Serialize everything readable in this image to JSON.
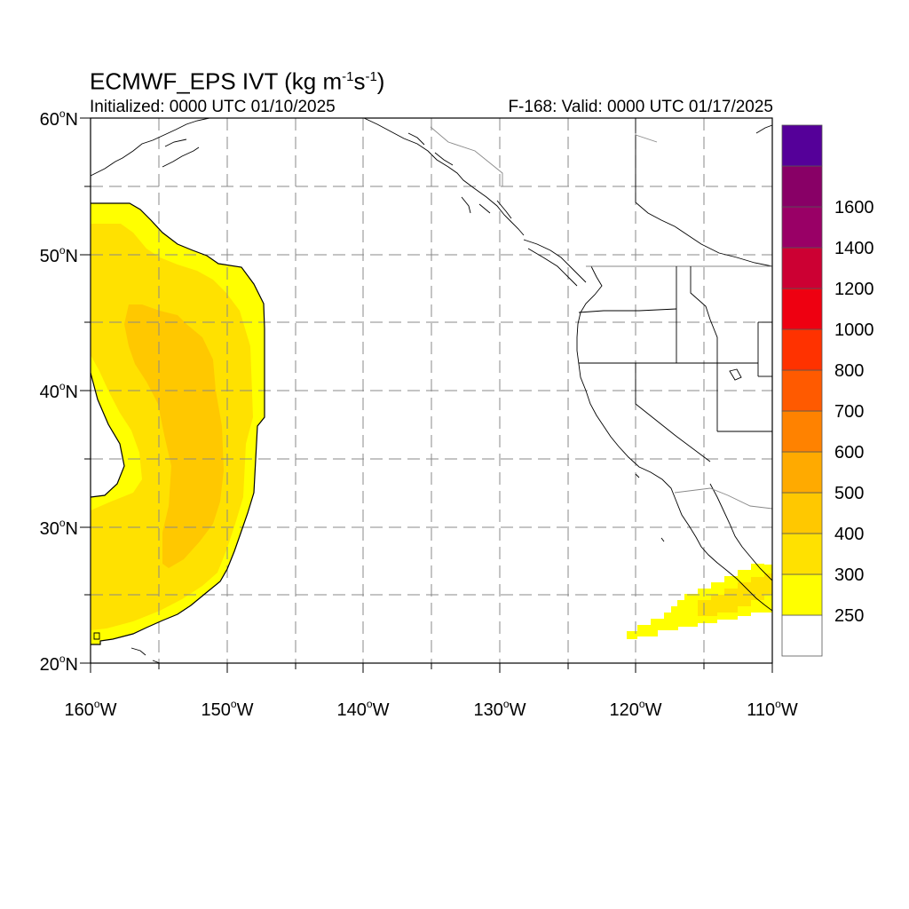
{
  "title": {
    "prefix": "ECMWF_EPS IVT (kg m",
    "exp1": "-1",
    "mid": "s",
    "exp2": "-1",
    "suffix": ")"
  },
  "initialized_text": "Initialized: 0000 UTC 01/10/2025",
  "valid_text": "F-168: Valid: 0000 UTC 01/17/2025",
  "map": {
    "lon_range": [
      -160,
      -110
    ],
    "lat_range": [
      20,
      60
    ],
    "lat_labels": [
      {
        "lat": 60,
        "text": "60",
        "hemi": "N"
      },
      {
        "lat": 50,
        "text": "50",
        "hemi": "N"
      },
      {
        "lat": 40,
        "text": "40",
        "hemi": "N"
      },
      {
        "lat": 30,
        "text": "30",
        "hemi": "N"
      },
      {
        "lat": 20,
        "text": "20",
        "hemi": "N"
      }
    ],
    "lon_labels": [
      {
        "lon": -160,
        "text": "160",
        "hemi": "W"
      },
      {
        "lon": -150,
        "text": "150",
        "hemi": "W"
      },
      {
        "lon": -140,
        "text": "140",
        "hemi": "W"
      },
      {
        "lon": -130,
        "text": "130",
        "hemi": "W"
      },
      {
        "lon": -120,
        "text": "120",
        "hemi": "W"
      },
      {
        "lon": -110,
        "text": "110",
        "hemi": "W"
      }
    ]
  },
  "colorbar": {
    "labels": [
      "250",
      "300",
      "400",
      "500",
      "600",
      "700",
      "800",
      "1000",
      "1200",
      "1400",
      "1600"
    ],
    "colors": [
      "#ffffff",
      "#ffff00",
      "#ffe100",
      "#ffc800",
      "#ffaa00",
      "#ff8200",
      "#ff5a00",
      "#ff3200",
      "#ee0011",
      "#cc0033",
      "#990066",
      "#880066",
      "#550099"
    ]
  }
}
